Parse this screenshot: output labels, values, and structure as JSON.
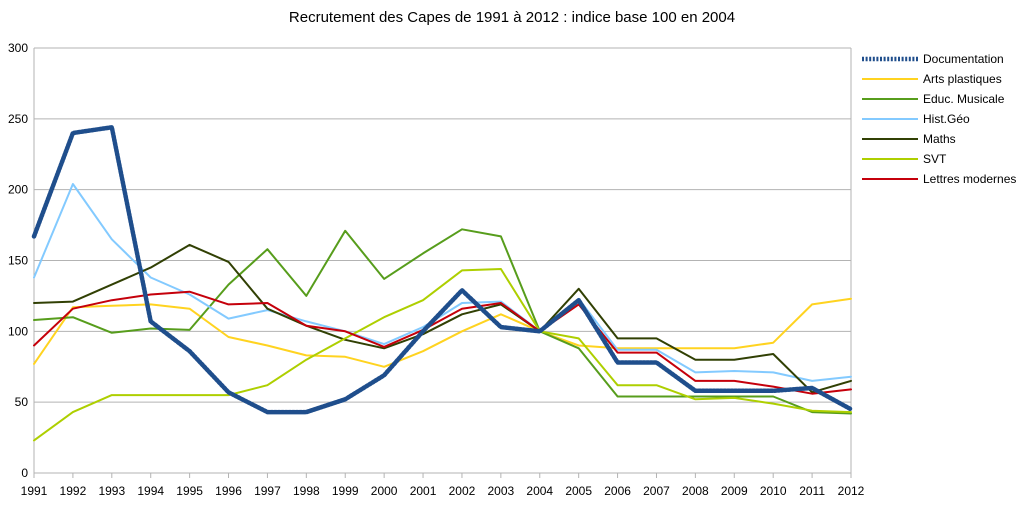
{
  "chart_data": {
    "type": "line",
    "title": "Recrutement des Capes de 1991 à 2012 : indice base 100 en 2004",
    "xlabel": "",
    "ylabel": "",
    "ylim": [
      0,
      300
    ],
    "yticks": [
      "0",
      "50",
      "100",
      "150",
      "200",
      "250",
      "300"
    ],
    "grid": true,
    "legend_position": "right",
    "categories": [
      "1991",
      "1992",
      "1993",
      "1994",
      "1995",
      "1996",
      "1997",
      "1998",
      "1999",
      "2000",
      "2001",
      "2002",
      "2003",
      "2004",
      "2005",
      "2006",
      "2007",
      "2008",
      "2009",
      "2010",
      "2011",
      "2012"
    ],
    "series": [
      {
        "name": "Documentation",
        "color": "#1f4e8c",
        "style": "dotted",
        "values": [
          167,
          240,
          244,
          107,
          86,
          57,
          43,
          43,
          52,
          69,
          100,
          129,
          103,
          100,
          122,
          78,
          78,
          58,
          58,
          58,
          60,
          45
        ]
      },
      {
        "name": "Arts plastiques",
        "color": "#ffd320",
        "style": "solid",
        "values": [
          77,
          117,
          118,
          119,
          116,
          96,
          90,
          83,
          82,
          75,
          86,
          100,
          112,
          100,
          90,
          88,
          88,
          88,
          88,
          92,
          119,
          123
        ]
      },
      {
        "name": "Educ. Musicale",
        "color": "#579d1c",
        "style": "solid",
        "values": [
          108,
          110,
          99,
          102,
          101,
          133,
          158,
          125,
          171,
          137,
          155,
          172,
          167,
          100,
          88,
          54,
          54,
          54,
          54,
          54,
          43,
          42
        ]
      },
      {
        "name": "Hist.Géo",
        "color": "#83caff",
        "style": "solid",
        "values": [
          138,
          204,
          165,
          138,
          126,
          109,
          115,
          107,
          100,
          91,
          103,
          120,
          121,
          100,
          123,
          87,
          87,
          71,
          72,
          71,
          65,
          68
        ]
      },
      {
        "name": "Maths",
        "color": "#314004",
        "style": "solid",
        "values": [
          120,
          121,
          133,
          145,
          161,
          149,
          116,
          104,
          94,
          88,
          98,
          112,
          119,
          100,
          130,
          95,
          95,
          80,
          80,
          84,
          57,
          65
        ]
      },
      {
        "name": "SVT",
        "color": "#aecf00",
        "style": "solid",
        "values": [
          23,
          43,
          55,
          55,
          55,
          55,
          62,
          80,
          95,
          110,
          122,
          143,
          144,
          100,
          95,
          62,
          62,
          52,
          53,
          49,
          44,
          43
        ]
      },
      {
        "name": "Lettres modernes",
        "color": "#c5000b",
        "style": "solid",
        "values": [
          90,
          116,
          122,
          126,
          128,
          119,
          120,
          104,
          100,
          89,
          101,
          116,
          120,
          100,
          119,
          85,
          85,
          65,
          65,
          61,
          56,
          59
        ]
      }
    ]
  }
}
